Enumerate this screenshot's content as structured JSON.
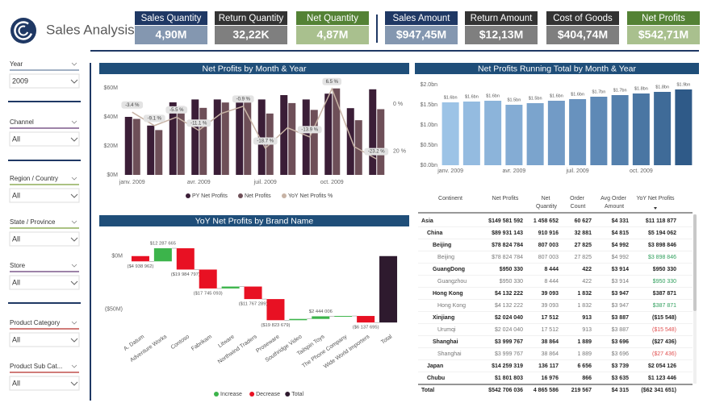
{
  "header": {
    "title": "Sales Analysis",
    "kpis": [
      {
        "label": "Sales Quantity",
        "value": "4,90M",
        "header_color": "#1f3864",
        "value_color": "#8497b0"
      },
      {
        "label": "Return Quantity",
        "value": "32,22K",
        "header_color": "#333333",
        "value_color": "#7f7f7f"
      },
      {
        "label": "Net Quantity",
        "value": "4,87M",
        "header_color": "#548235",
        "value_color": "#a9c08e"
      },
      {
        "label": "Sales Amount",
        "value": "$947,45M",
        "header_color": "#1f3864",
        "value_color": "#8497b0"
      },
      {
        "label": "Return Amount",
        "value": "$12,13M",
        "header_color": "#333333",
        "value_color": "#7f7f7f"
      },
      {
        "label": "Cost of Goods",
        "value": "$404,74M",
        "header_color": "#333333",
        "value_color": "#7f7f7f"
      },
      {
        "label": "Net Profits",
        "value": "$542,71M",
        "header_color": "#548235",
        "value_color": "#a9c08e"
      }
    ]
  },
  "filters": [
    {
      "label": "Year",
      "value": "2009",
      "color": "#8497b0"
    },
    {
      "label": "Channel",
      "value": "All",
      "color": "#7d5a8c"
    },
    {
      "label": "Region / Country",
      "value": "All",
      "color": "#8fae5a"
    },
    {
      "label": "State / Province",
      "value": "All",
      "color": "#8fae5a"
    },
    {
      "label": "Store",
      "value": "All",
      "color": "#7d5a8c"
    },
    {
      "label": "Product Category",
      "value": "All",
      "color": "#c0504d"
    },
    {
      "label": "Product Sub Cat...",
      "value": "All",
      "color": "#c0504d"
    }
  ],
  "chart_data": [
    {
      "type": "combo",
      "title": "Net Profits by Month & Year",
      "categories": [
        "janv. 2009",
        null,
        null,
        "avr. 2009",
        null,
        null,
        "juil. 2009",
        null,
        null,
        "oct. 2009",
        null,
        null
      ],
      "series": [
        {
          "name": "PY Net Profits",
          "color": "#3b1e37",
          "values": [
            40,
            34,
            50,
            52,
            52,
            53,
            52,
            55,
            52,
            56,
            46,
            59
          ]
        },
        {
          "name": "Net Profits",
          "color": "#6e4f58",
          "values": [
            38.6,
            30.9,
            47.3,
            46.2,
            49.9,
            52.5,
            42.3,
            49.5,
            44.8,
            59.6,
            37.7,
            45.3
          ]
        },
        {
          "name": "YoY Net Profits %",
          "color": "#c7b3a5",
          "axis": "y2",
          "type": "line",
          "values": [
            -3.4,
            -9.1,
            -5.5,
            -11.1,
            -4,
            -0.9,
            -18.7,
            -10,
            -13.9,
            6.5,
            -18,
            -23.2
          ],
          "value_labels": [
            "-3.4 %",
            "-9.1 %",
            "-5.5 %",
            "-11.1 %",
            null,
            "-0.9 %",
            "-18.7 %",
            null,
            "-13.9 %",
            "6.5 %",
            null,
            "-23.2 %"
          ]
        }
      ],
      "ylim": [
        0,
        65
      ],
      "yticks": [
        {
          "value": 0,
          "label": "$0M"
        },
        {
          "value": 20,
          "label": "$20M"
        },
        {
          "value": 40,
          "label": "$40M"
        },
        {
          "value": 60,
          "label": "$60M"
        }
      ],
      "y2lim": [
        -30,
        10
      ],
      "y2ticks": [
        {
          "value": 0,
          "label": "0 %"
        },
        {
          "value": -20,
          "label": "20 %"
        }
      ]
    },
    {
      "type": "bar",
      "title": "Net Profits Running Total by Month & Year",
      "categories": [
        "janv. 2009",
        null,
        null,
        "avr. 2009",
        null,
        null,
        "juil. 2009",
        null,
        null,
        "oct. 2009",
        null,
        null
      ],
      "values": [
        1.56,
        1.58,
        1.6,
        1.5,
        1.54,
        1.6,
        1.64,
        1.7,
        1.74,
        1.78,
        1.82,
        1.88
      ],
      "value_labels": [
        "$1.6bn",
        "$1.6bn",
        "$1.6bn",
        "$1.5bn",
        "$1.5bn",
        "$1.6bn",
        "$1.6bn",
        "$1.7bn",
        "$1.7bn",
        "$1.8bn",
        "$1.8bn",
        "$1.9bn"
      ],
      "colors": [
        "#9cc3e6",
        "#94bbe0",
        "#8cb4da",
        "#84acd4",
        "#7ba4cd",
        "#729bc6",
        "#6892be",
        "#5e89b6",
        "#5480ad",
        "#4a76a3",
        "#3f6b98",
        "#2f5a88"
      ],
      "ylim": [
        0,
        2.1
      ],
      "yticks": [
        {
          "value": 0,
          "label": "$0.0bn"
        },
        {
          "value": 0.5,
          "label": "$0.5bn"
        },
        {
          "value": 1,
          "label": "$1.0bn"
        },
        {
          "value": 1.5,
          "label": "$1.5bn"
        },
        {
          "value": 2,
          "label": "$2.0bn"
        }
      ]
    },
    {
      "type": "waterfall",
      "title": "YoY Net Profits by Brand Name",
      "categories": [
        "A. Datum",
        "Adventure Works",
        "Contoso",
        "Fabrikam",
        "Litware",
        "Northwind Traders",
        "Proseware",
        "Southridge Video",
        "Tailspin Toys",
        "The Phone Company",
        "Wide World Importers",
        "Total"
      ],
      "values": [
        -4938962,
        12287665,
        -19984797,
        -17745093,
        1800000,
        -11767289,
        -19823679,
        1200000,
        2444006,
        330000,
        -6137695,
        -62341651
      ],
      "value_labels": [
        "($4 938 962)",
        "$12 287 665",
        "($19 984 797)",
        "($17 745 093)",
        null,
        "($11 767 289)",
        "($19 823 679)",
        null,
        "$2 444 006",
        null,
        "($6 137 695)",
        null
      ],
      "last_is_total": true,
      "legend": [
        {
          "name": "Increase",
          "color": "#3cb44b"
        },
        {
          "name": "Decrease",
          "color": "#e81123"
        },
        {
          "name": "Total",
          "color": "#2e1a2e"
        }
      ],
      "ylim": [
        -66000000,
        21000000
      ],
      "yticks": [
        {
          "value": 0,
          "label": "$0M"
        },
        {
          "value": -50000000,
          "label": "($50M)"
        }
      ]
    }
  ],
  "table": {
    "columns": [
      "Continent",
      "Net Profits",
      "Net Quantity",
      "Order Count",
      "Avg Order Amount",
      "YoY Net Profits"
    ],
    "rows": [
      [
        "Asia",
        "$149 581 592",
        "1 458 652",
        "60 627",
        "$4 331",
        "$11 118 877"
      ],
      [
        "China",
        "$89 931 143",
        "910 916",
        "32 881",
        "$4 815",
        "$5 194 062"
      ],
      [
        "Beijing",
        "$78 824 784",
        "807 003",
        "27 825",
        "$4 992",
        "$3 898 846"
      ],
      [
        "Beijing",
        "$78 824 784",
        "807 003",
        "27 825",
        "$4 992",
        "$3 898 846"
      ],
      [
        "GuangDong",
        "$950 330",
        "8 444",
        "422",
        "$3 914",
        "$950 330"
      ],
      [
        "Guangzhou",
        "$950 330",
        "8 444",
        "422",
        "$3 914",
        "$950 330"
      ],
      [
        "Hong Kong",
        "$4 132 222",
        "39 093",
        "1 832",
        "$3 947",
        "$387 871"
      ],
      [
        "Hong Kong",
        "$4 132 222",
        "39 093",
        "1 832",
        "$3 947",
        "$387 871"
      ],
      [
        "Xinjiang",
        "$2 024 040",
        "17 512",
        "913",
        "$3 887",
        "($15 548)"
      ],
      [
        "Urumqi",
        "$2 024 040",
        "17 512",
        "913",
        "$3 887",
        "($15 548)"
      ],
      [
        "Shanghai",
        "$3 999 767",
        "38 864",
        "1 889",
        "$3 696",
        "($27 436)"
      ],
      [
        "Shanghai",
        "$3 999 767",
        "38 864",
        "1 889",
        "$3 696",
        "($27 436)"
      ],
      [
        "Japan",
        "$14 259 319",
        "136 117",
        "6 656",
        "$3 739",
        "$2 054 126"
      ],
      [
        "Chubu",
        "$1 801 803",
        "16 976",
        "866",
        "$3 635",
        "$1 123 446"
      ],
      [
        "Total",
        "$542 706 036",
        "4 865 586",
        "219 567",
        "$4 315",
        "($62 341 651)"
      ]
    ]
  }
}
